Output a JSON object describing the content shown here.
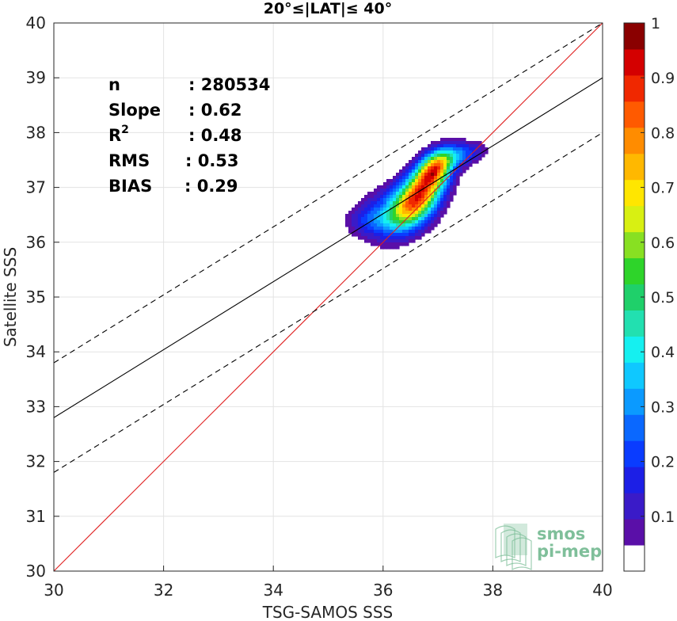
{
  "chart_data": {
    "type": "heatmap",
    "title": "20°≤|LAT|≤ 40°",
    "xlabel": "TSG-SAMOS SSS",
    "ylabel": "Satellite SSS",
    "xlim": [
      30,
      40
    ],
    "ylim": [
      30,
      40
    ],
    "xticks": [
      "30",
      "32",
      "34",
      "36",
      "38",
      "40"
    ],
    "yticks": [
      "30",
      "31",
      "32",
      "33",
      "34",
      "35",
      "36",
      "37",
      "38",
      "39",
      "40"
    ],
    "grid": true,
    "stats": [
      {
        "label": "n",
        "sep": ": ",
        "value": "280534"
      },
      {
        "label": "Slope",
        "sep": ": ",
        "value": "0.62"
      },
      {
        "label": "R",
        "sup": "2",
        "sep": ": ",
        "value": "0.48"
      },
      {
        "label": "RMS",
        "sep": ": ",
        "value": "0.53"
      },
      {
        "label": "BIAS",
        "sep": ": ",
        "value": "0.29"
      }
    ],
    "lines": {
      "identity": {
        "from": [
          30,
          30
        ],
        "to": [
          40,
          40
        ],
        "color": "#e02020"
      },
      "fit": {
        "from": [
          30,
          32.8
        ],
        "to": [
          40,
          39.0
        ],
        "color": "#000000"
      },
      "fit_upper": {
        "from": [
          30,
          33.8
        ],
        "to": [
          40,
          40.0
        ],
        "color": "#000000",
        "dash": true
      },
      "fit_lower": {
        "from": [
          30,
          31.8
        ],
        "to": [
          40,
          38.0
        ],
        "color": "#000000",
        "dash": true
      }
    },
    "density": {
      "center": [
        36.65,
        36.85
      ],
      "components": [
        {
          "cx": 36.65,
          "cy": 36.85,
          "sx": 0.32,
          "sy": 0.38,
          "rho": 0.55,
          "w": 1.0
        },
        {
          "cx": 36.95,
          "cy": 37.35,
          "sx": 0.22,
          "sy": 0.22,
          "rho": 0.4,
          "w": 0.75
        },
        {
          "cx": 36.2,
          "cy": 36.55,
          "sx": 0.45,
          "sy": 0.32,
          "rho": 0.3,
          "w": 0.35
        },
        {
          "cx": 37.4,
          "cy": 37.6,
          "sx": 0.3,
          "sy": 0.15,
          "rho": 0.3,
          "w": 0.3
        },
        {
          "cx": 35.75,
          "cy": 36.4,
          "sx": 0.25,
          "sy": 0.15,
          "rho": 0.0,
          "w": 0.12
        }
      ]
    },
    "colorbar": {
      "ticks": [
        "0.1",
        "0.2",
        "0.3",
        "0.4",
        "0.5",
        "0.6",
        "0.7",
        "0.8",
        "0.9",
        "1"
      ],
      "levels": [
        0.05,
        0.1,
        0.15,
        0.2,
        0.25,
        0.3,
        0.35,
        0.4,
        0.45,
        0.5,
        0.55,
        0.6,
        0.65,
        0.7,
        0.75,
        0.8,
        0.85,
        0.9,
        0.95,
        1.0
      ],
      "colors": [
        "#ffffff",
        "#5a0fa8",
        "#3a1bc8",
        "#1c1fe6",
        "#0a3cff",
        "#0a68ff",
        "#0b9aff",
        "#0fc8ff",
        "#15f0f0",
        "#22e0b0",
        "#1fd06a",
        "#2ed42a",
        "#88e022",
        "#d8f012",
        "#ffe600",
        "#ffb800",
        "#ff8c00",
        "#ff5a00",
        "#f02800",
        "#d40000",
        "#8a0000"
      ]
    },
    "logo": {
      "line1": "smos",
      "line2": "pi-mep",
      "color": "#7fbf9a"
    }
  }
}
